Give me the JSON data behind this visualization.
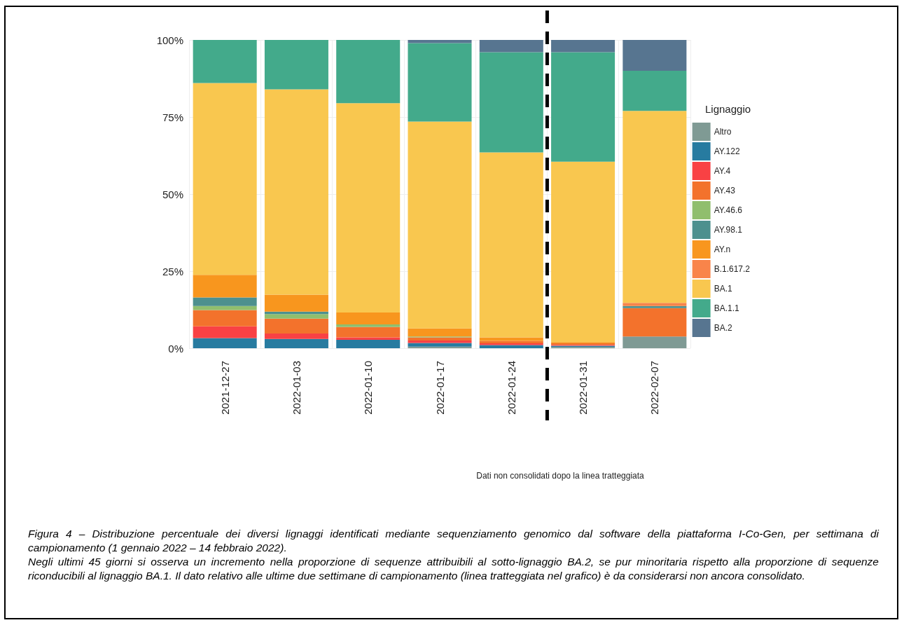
{
  "chart_data": {
    "type": "bar",
    "stacked": true,
    "categories": [
      "2021-12-27",
      "2022-01-03",
      "2022-01-10",
      "2022-01-17",
      "2022-01-24",
      "2022-01-31",
      "2022-02-07"
    ],
    "series": [
      {
        "name": "Altro",
        "color": "#7f9a94",
        "values": [
          0,
          0,
          0,
          0.5,
          0,
          0.4,
          3.8
        ]
      },
      {
        "name": "AY.122",
        "color": "#277ba0",
        "values": [
          3.3,
          3.0,
          2.7,
          1.2,
          1.0,
          0.4,
          0
        ]
      },
      {
        "name": "AY.4",
        "color": "#f94144",
        "values": [
          3.8,
          1.8,
          0.8,
          0.8,
          0.6,
          0.3,
          0
        ]
      },
      {
        "name": "AY.43",
        "color": "#f3722c",
        "values": [
          5.3,
          4.8,
          3.4,
          1.0,
          0.8,
          0.5,
          9.2
        ]
      },
      {
        "name": "AY.46.6",
        "color": "#90be6d",
        "values": [
          1.3,
          1.5,
          0.8,
          0.3,
          0,
          0,
          0
        ]
      },
      {
        "name": "AY.98.1",
        "color": "#4d908e",
        "values": [
          2.8,
          0.8,
          0,
          0,
          0,
          0,
          0.7
        ]
      },
      {
        "name": "AY.n",
        "color": "#f8961e",
        "values": [
          7.3,
          5.5,
          3.9,
          2.6,
          1.1,
          0.4,
          0
        ]
      },
      {
        "name": "B.1.617.2",
        "color": "#f9844a",
        "values": [
          0,
          0,
          0,
          0,
          0,
          0,
          1.0
        ]
      },
      {
        "name": "BA.1",
        "color": "#f9c74f",
        "values": [
          62.2,
          66.6,
          67.9,
          67.1,
          60.0,
          58.5,
          62.3
        ]
      },
      {
        "name": "BA.1.1",
        "color": "#43aa8b",
        "values": [
          14.0,
          16.0,
          20.5,
          25.5,
          32.5,
          35.5,
          13.0
        ]
      },
      {
        "name": "BA.2",
        "color": "#577590",
        "values": [
          0,
          0,
          0,
          1.0,
          4.0,
          4.0,
          10.0
        ]
      }
    ],
    "ylim": [
      0,
      100
    ],
    "yticks": [
      {
        "value": 0,
        "label": "0%"
      },
      {
        "value": 25,
        "label": "25%"
      },
      {
        "value": 50,
        "label": "50%"
      },
      {
        "value": 75,
        "label": "75%"
      },
      {
        "value": 100,
        "label": "100%"
      }
    ],
    "grid": true,
    "legend": "right",
    "legend_title": "Lignaggio",
    "ref_lines": [
      {
        "axis": "x",
        "value": "2022-01-31",
        "line_style": "dashed",
        "color": "#000000"
      }
    ],
    "annotations": [
      "Dati non consolidati dopo la linea tratteggiata",
      "Figura 4 – Distribuzione percentuale dei diversi lignaggi identificati mediante sequenziamento genomico dal software della piattaforma I-Co-Gen, per settimana di campionamento (1 gennaio 2022 – 14 febbraio 2022).",
      "Negli ultimi 45 giorni si osserva un incremento nella proporzione di sequenze attribuibili al sotto-lignaggio BA.2, se pur minoritaria rispetto alla proporzione di sequenze riconducibili al lignaggio BA.1. Il dato relativo alle ultime due settimane di campionamento (linea tratteggiata nel grafico) è da considerarsi non ancora consolidato."
    ]
  }
}
